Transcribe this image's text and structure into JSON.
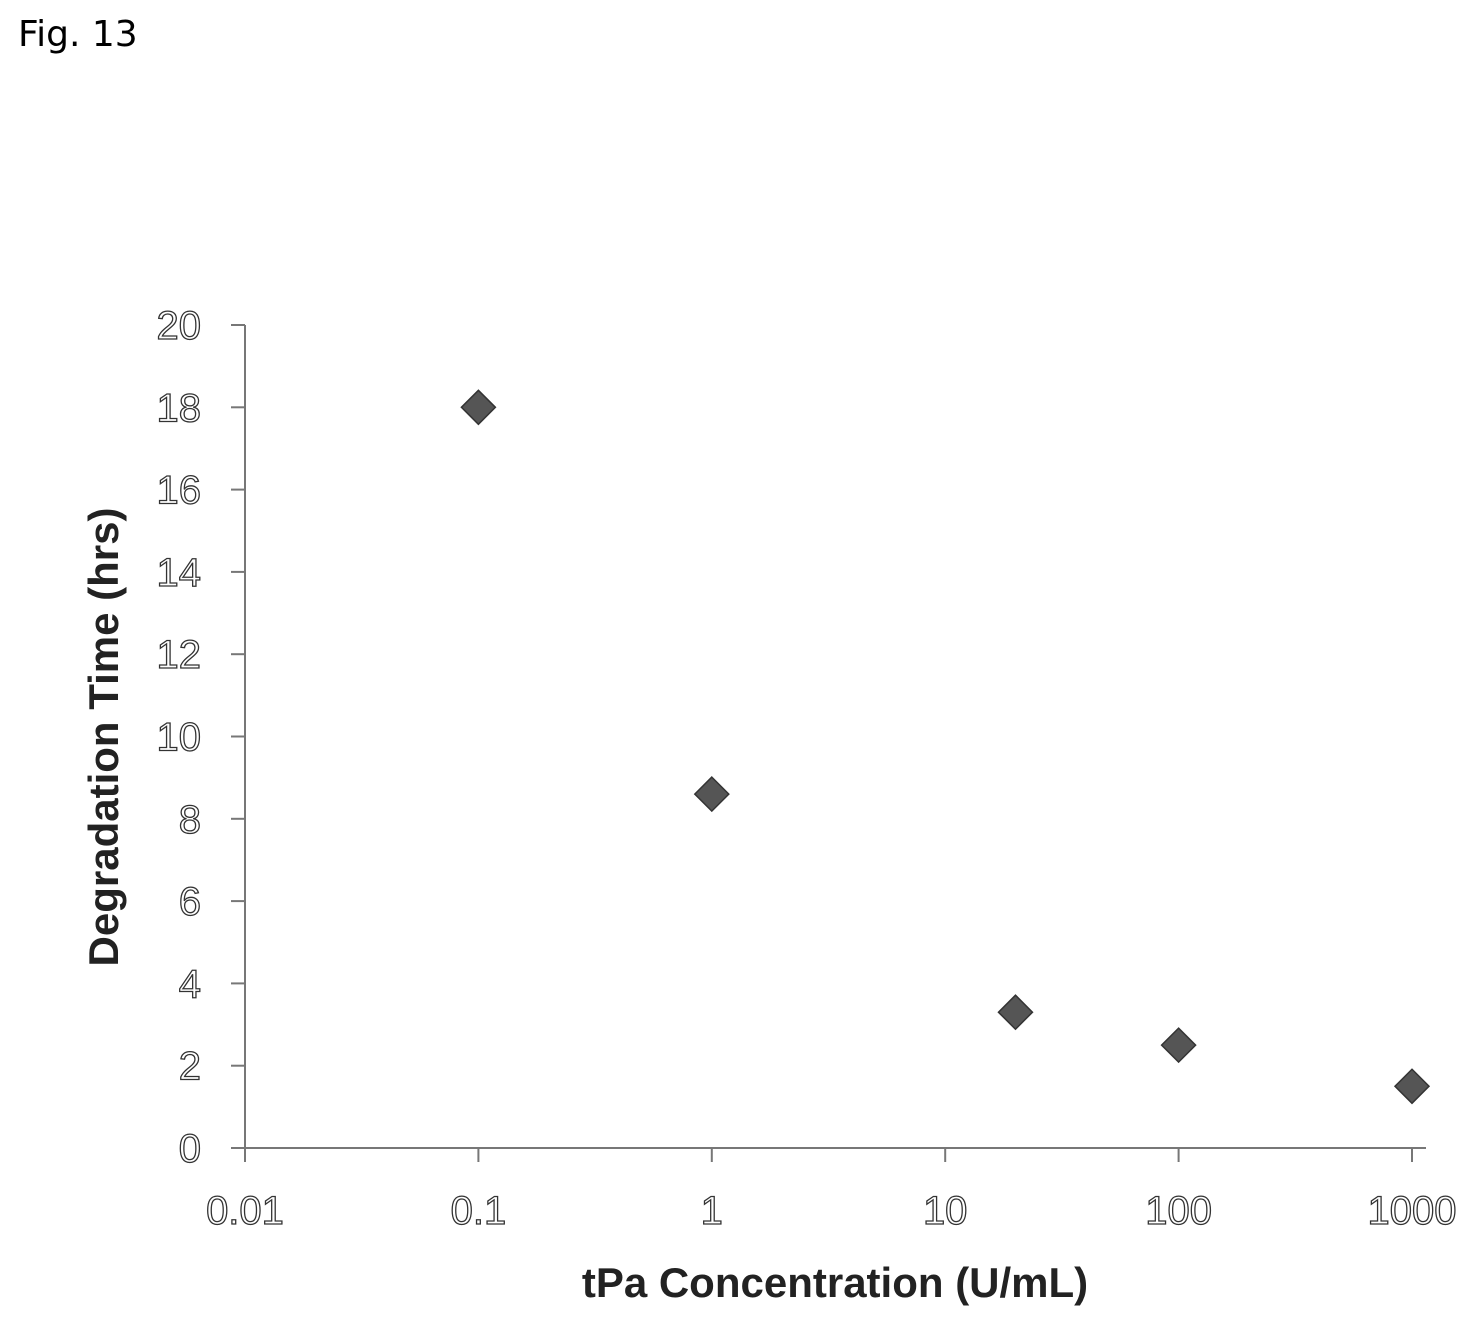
{
  "figure": {
    "label": "Fig. 13"
  },
  "colors": {
    "marker": "#555555",
    "axis": "#777777"
  },
  "chart_data": {
    "type": "scatter",
    "title": "",
    "xlabel": "tPa Concentration (U/mL)",
    "ylabel": "Degradation Time (hrs)",
    "x_scale": "log",
    "xlim": [
      0.01,
      1000
    ],
    "ylim": [
      0,
      20
    ],
    "x_ticks": [
      0.01,
      0.1,
      1,
      10,
      100,
      1000
    ],
    "x_tick_labels": [
      "0.01",
      "0.1",
      "1",
      "10",
      "100",
      "1000"
    ],
    "y_ticks": [
      0,
      2,
      4,
      6,
      8,
      10,
      12,
      14,
      16,
      18,
      20
    ],
    "y_tick_labels": [
      "0",
      "2",
      "4",
      "6",
      "8",
      "10",
      "12",
      "14",
      "16",
      "18",
      "20"
    ],
    "grid": false,
    "legend": "none",
    "marker": "diamond",
    "points": [
      {
        "x": 0.1,
        "y": 18.0
      },
      {
        "x": 1,
        "y": 8.6
      },
      {
        "x": 20,
        "y": 3.3
      },
      {
        "x": 100,
        "y": 2.5
      },
      {
        "x": 1000,
        "y": 1.5
      }
    ]
  }
}
